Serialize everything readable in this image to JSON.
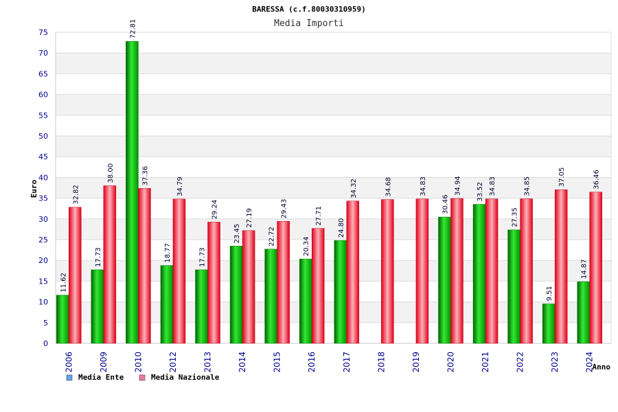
{
  "chart_data": {
    "type": "bar",
    "title": "BARESSA (c.f.80030310959)",
    "subtitle": "Media Importi",
    "xlabel": "Anno",
    "ylabel": "Euro",
    "ylim": [
      0,
      75
    ],
    "yticks": [
      0,
      5,
      10,
      15,
      20,
      25,
      30,
      35,
      40,
      45,
      50,
      55,
      60,
      65,
      70,
      75
    ],
    "categories": [
      "2006",
      "2009",
      "2010",
      "2012",
      "2013",
      "2014",
      "2015",
      "2016",
      "2017",
      "2018",
      "2019",
      "2020",
      "2021",
      "2022",
      "2023",
      "2024"
    ],
    "series": [
      {
        "name": "Media Ente",
        "color": "#00b000",
        "legend_color": "#5da6e8",
        "values": [
          11.62,
          17.73,
          72.81,
          18.77,
          17.73,
          23.45,
          22.72,
          20.34,
          24.8,
          null,
          null,
          30.46,
          33.52,
          27.35,
          9.51,
          14.87
        ],
        "labels": [
          "11.62",
          "17.73",
          "72.81",
          "18.77",
          "17.73",
          "23.45",
          "22.72",
          "20.34",
          "24.80",
          null,
          null,
          "30.46",
          "33.52",
          "27.35",
          "9.51",
          "14.87"
        ]
      },
      {
        "name": "Media Nazionale",
        "color": "#e8001c",
        "legend_color": "#e87aa6",
        "values": [
          32.82,
          38.0,
          37.36,
          34.79,
          29.24,
          27.19,
          29.43,
          27.71,
          34.32,
          34.68,
          34.83,
          34.94,
          34.83,
          34.85,
          37.05,
          36.46
        ],
        "labels": [
          "32.82",
          "38.00",
          "37.36",
          "34.79",
          "29.24",
          "27.19",
          "29.43",
          "27.71",
          "34.32",
          "34.68",
          "34.83",
          "34.94",
          "34.83",
          "34.85",
          "37.05",
          "36.46"
        ]
      }
    ],
    "grid": true,
    "legend_position": "bottom-left"
  }
}
